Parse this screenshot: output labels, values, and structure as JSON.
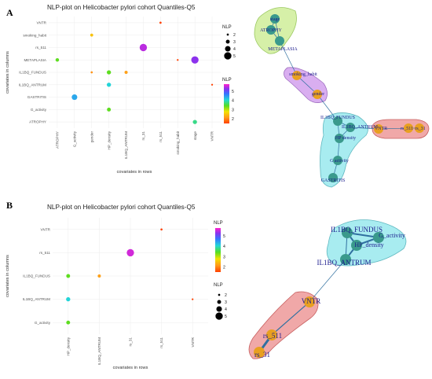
{
  "figure": {
    "panel_a_label": "A",
    "panel_b_label": "B"
  },
  "chart_data": [
    {
      "type": "scatter",
      "title": "NLP-plot on Helicobacter pylori cohort Quantiles-Q5",
      "xlabel": "covariates in rows",
      "ylabel": "covariates in columns",
      "x_categories": [
        "ATROPHY",
        "G_activity",
        "gender",
        "HP_density",
        "IL1BQ_ANTRUM",
        "rs_31",
        "rs_511",
        "smoking_habit",
        "stage",
        "VNTR"
      ],
      "y_categories": [
        "VNTR",
        "smoking_habit",
        "rs_511",
        "METAPLASIA",
        "IL1BQ_FUNDUS",
        "IL1BQ_ANTRUM",
        "GASTRITIS",
        "G_activity",
        "ATROPHY"
      ],
      "points": [
        {
          "x": "rs_511",
          "y": "VNTR",
          "size": 2,
          "color": 1.5
        },
        {
          "x": "gender",
          "y": "smoking_habit",
          "size": 2.5,
          "color": 2.5
        },
        {
          "x": "rs_31",
          "y": "rs_511",
          "size": 5,
          "color": 5.5
        },
        {
          "x": "ATROPHY",
          "y": "METAPLASIA",
          "size": 2.8,
          "color": 3.4
        },
        {
          "x": "smoking_habit",
          "y": "METAPLASIA",
          "size": 1.8,
          "color": 1.5
        },
        {
          "x": "stage",
          "y": "METAPLASIA",
          "size": 5,
          "color": 5.3
        },
        {
          "x": "gender",
          "y": "IL1BQ_FUNDUS",
          "size": 2,
          "color": 2.1
        },
        {
          "x": "HP_density",
          "y": "IL1BQ_FUNDUS",
          "size": 3.2,
          "color": 3.4
        },
        {
          "x": "IL1BQ_ANTRUM",
          "y": "IL1BQ_FUNDUS",
          "size": 2.6,
          "color": 2.2
        },
        {
          "x": "VNTR",
          "y": "IL1BQ_ANTRUM",
          "size": 1.8,
          "color": 1.5
        },
        {
          "x": "HP_density",
          "y": "IL1BQ_ANTRUM",
          "size": 3.2,
          "color": 4.1
        },
        {
          "x": "G_activity",
          "y": "GASTRITIS",
          "size": 4,
          "color": 4.4
        },
        {
          "x": "HP_density",
          "y": "G_activity",
          "size": 3,
          "color": 3.4
        },
        {
          "x": "stage",
          "y": "ATROPHY",
          "size": 3.2,
          "color": 3.8
        }
      ],
      "legend_size": {
        "title": "NLP",
        "values": [
          2,
          3,
          4,
          5
        ]
      },
      "legend_color": {
        "title": "NLP",
        "ticks": [
          2,
          3,
          4,
          5
        ],
        "range": [
          1.5,
          5.8
        ]
      },
      "grid": true
    },
    {
      "type": "network",
      "nodes": [
        "stage",
        "ATROPHY",
        "METAPLASIA",
        "smoking_habit",
        "gender",
        "IL1BQ_FUNDUS",
        "IL1BQ_ANTRUM",
        "HP density",
        "G activity",
        "GASTRITIS",
        "VNTR",
        "rs_511",
        "rs_31"
      ],
      "node_colors": {
        "green": "#3a9a8c",
        "gold": "#e8a020"
      },
      "clusters": [
        {
          "members": [
            "stage",
            "ATROPHY",
            "METAPLASIA"
          ],
          "fill": "#d6f0a8"
        },
        {
          "members": [
            "smoking_habit",
            "gender"
          ],
          "fill": "#d9aef0"
        },
        {
          "members": [
            "IL1BQ_FUNDUS",
            "IL1BQ_ANTRUM",
            "HP density",
            "G activity",
            "GASTRITIS"
          ],
          "fill": "#a8ecf0"
        },
        {
          "members": [
            "VNTR",
            "rs_511",
            "rs_31"
          ],
          "fill": "#f0a8a8"
        }
      ]
    },
    {
      "type": "scatter",
      "title": "NLP-plot on Helicobacter pylori cohort Quantiles-Q5",
      "xlabel": "covariates in rows",
      "ylabel": "covariates in columns",
      "x_categories": [
        "HP_density",
        "IL1BQ_ANTRUM",
        "rs_31",
        "rs_511",
        "VNTR"
      ],
      "y_categories": [
        "VNTR",
        "rs_511",
        "IL1BQ_FUNDUS",
        "IL1BQ_ANTRUM",
        "G_activity"
      ],
      "points": [
        {
          "x": "rs_511",
          "y": "VNTR",
          "size": 2,
          "color": 1.5
        },
        {
          "x": "rs_31",
          "y": "rs_511",
          "size": 5,
          "color": 5.6
        },
        {
          "x": "HP_density",
          "y": "IL1BQ_FUNDUS",
          "size": 3,
          "color": 3.4
        },
        {
          "x": "IL1BQ_ANTRUM",
          "y": "IL1BQ_FUNDUS",
          "size": 2.6,
          "color": 2.2
        },
        {
          "x": "HP_density",
          "y": "IL1BQ_ANTRUM",
          "size": 3.2,
          "color": 4.1
        },
        {
          "x": "VNTR",
          "y": "IL1BQ_ANTRUM",
          "size": 1.8,
          "color": 1.5
        },
        {
          "x": "HP_density",
          "y": "G_activity",
          "size": 3,
          "color": 3.4
        }
      ],
      "legend_size": {
        "title": "NLP",
        "values": [
          2,
          3,
          4,
          5
        ]
      },
      "legend_color": {
        "title": "NLP",
        "ticks": [
          2,
          3,
          4,
          5
        ],
        "range": [
          1.5,
          5.8
        ]
      },
      "grid": true
    },
    {
      "type": "network",
      "nodes": [
        "IL1BQ_FUNDUS",
        "G_activity",
        "HP_density",
        "IL1BQ_ANTRUM",
        "VNTR",
        "rs_511",
        "rs_31"
      ],
      "node_colors": {
        "green": "#3a9a8c",
        "gold": "#e8a020"
      },
      "clusters": [
        {
          "members": [
            "IL1BQ_FUNDUS",
            "G_activity",
            "HP_density",
            "IL1BQ_ANTRUM"
          ],
          "fill": "#a8ecf0"
        },
        {
          "members": [
            "VNTR",
            "rs_511",
            "rs_31"
          ],
          "fill": "#f0a8a8"
        }
      ]
    }
  ]
}
